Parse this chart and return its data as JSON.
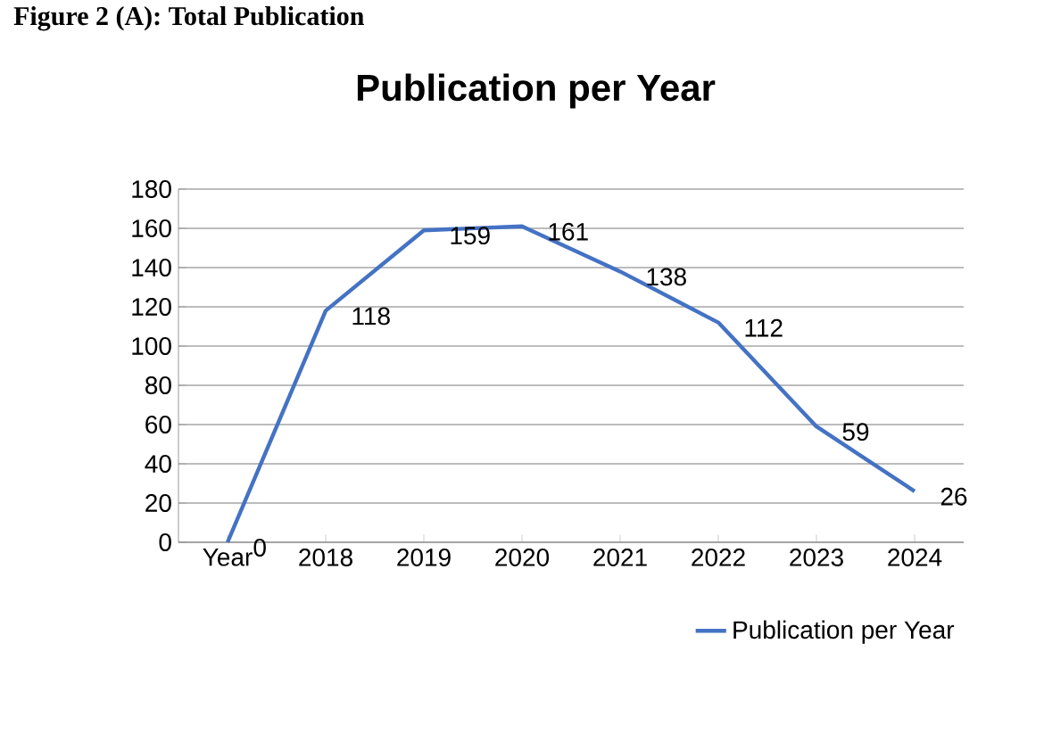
{
  "chart_data": {
    "type": "line",
    "title": "Publication per Year",
    "annotations": [
      "Figure 2 (A): Total Publication"
    ],
    "categories": [
      "Year",
      "2018",
      "2019",
      "2020",
      "2021",
      "2022",
      "2023",
      "2024"
    ],
    "series": [
      {
        "name": "Publication per Year",
        "color": "#4472c4",
        "values": [
          0,
          118,
          159,
          161,
          138,
          112,
          59,
          26
        ]
      }
    ],
    "ylim": [
      0,
      180
    ],
    "yticks": [
      0,
      20,
      40,
      60,
      80,
      100,
      120,
      140,
      160,
      180
    ],
    "grid": "y",
    "legend": "bottom right",
    "data_labels": true,
    "marker": "none",
    "line_style": "solid"
  }
}
